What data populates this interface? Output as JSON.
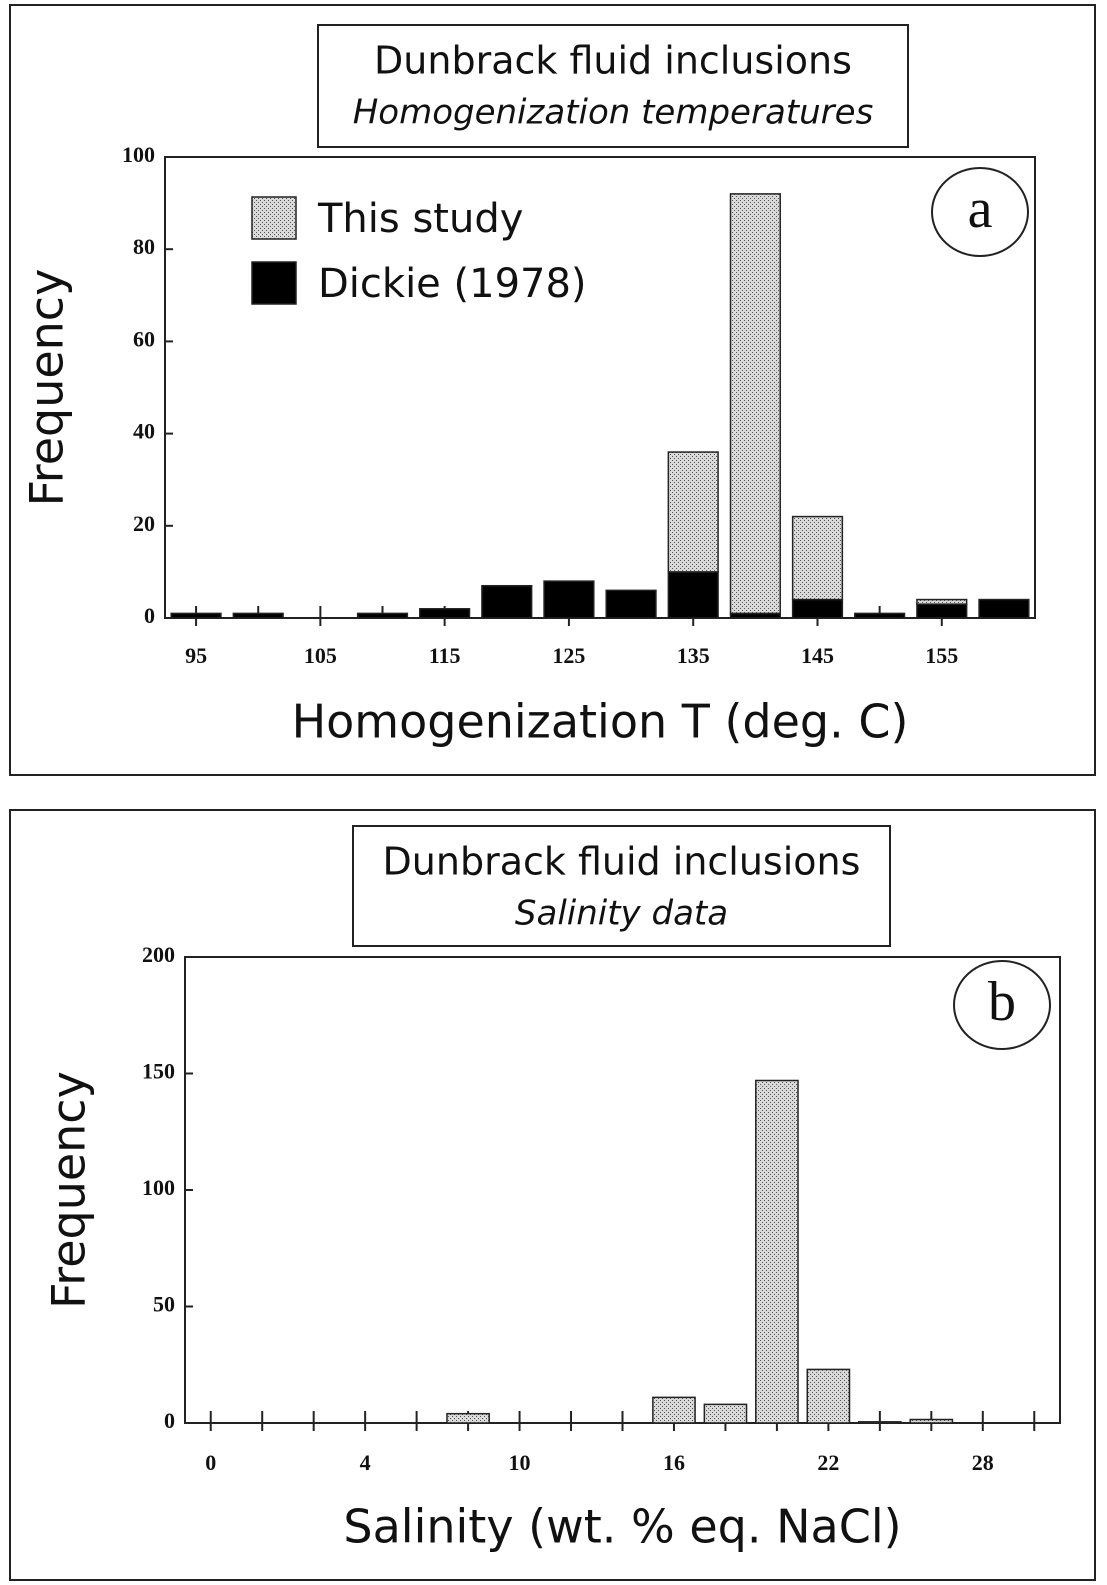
{
  "chart_data": [
    {
      "type": "bar",
      "stacked": true,
      "title": "Dunbrack fluid inclusions",
      "subtitle": "Homogenization temperatures",
      "panel_label": "a",
      "x_label": "Homogenization T (deg. C)",
      "y_label": "Frequency",
      "x": [
        95,
        100,
        105,
        110,
        115,
        120,
        125,
        130,
        135,
        140,
        145,
        150,
        155,
        160
      ],
      "series": [
        {
          "name": "Dickie (1978)",
          "color": "#000000",
          "values": [
            1,
            1,
            0,
            1,
            2,
            7,
            8,
            6,
            10,
            1,
            4,
            1,
            3,
            4
          ]
        },
        {
          "name": "This study",
          "color": "#d9d9d9",
          "values": [
            0,
            0,
            0,
            0,
            0,
            0,
            0,
            0,
            26,
            91,
            18,
            0,
            1,
            0
          ]
        }
      ],
      "xlim": [
        92.5,
        162.5
      ],
      "xticks": [
        95,
        105,
        115,
        125,
        135,
        145,
        155
      ],
      "ylim": [
        0,
        100
      ],
      "yticks": [
        0,
        20,
        40,
        60,
        80,
        100
      ],
      "legend": "upper left"
    },
    {
      "type": "bar",
      "title": "Dunbrack fluid inclusions",
      "subtitle": "Salinity data",
      "panel_label": "b",
      "x_label": "Salinity (wt. % eq. NaCl)",
      "y_label": "Frequency",
      "categories": [
        "0",
        null,
        null,
        "4",
        null,
        null,
        "10",
        null,
        null,
        "16",
        null,
        null,
        "22",
        null,
        null,
        "28",
        null
      ],
      "values": [
        0,
        0,
        0,
        0,
        0,
        4,
        0,
        0,
        0,
        11,
        8,
        147,
        23,
        0.5,
        1.5,
        0,
        0
      ],
      "color": "#d9d9d9",
      "ylim": [
        0,
        200
      ],
      "yticks": [
        0,
        50,
        100,
        150,
        200
      ]
    }
  ]
}
